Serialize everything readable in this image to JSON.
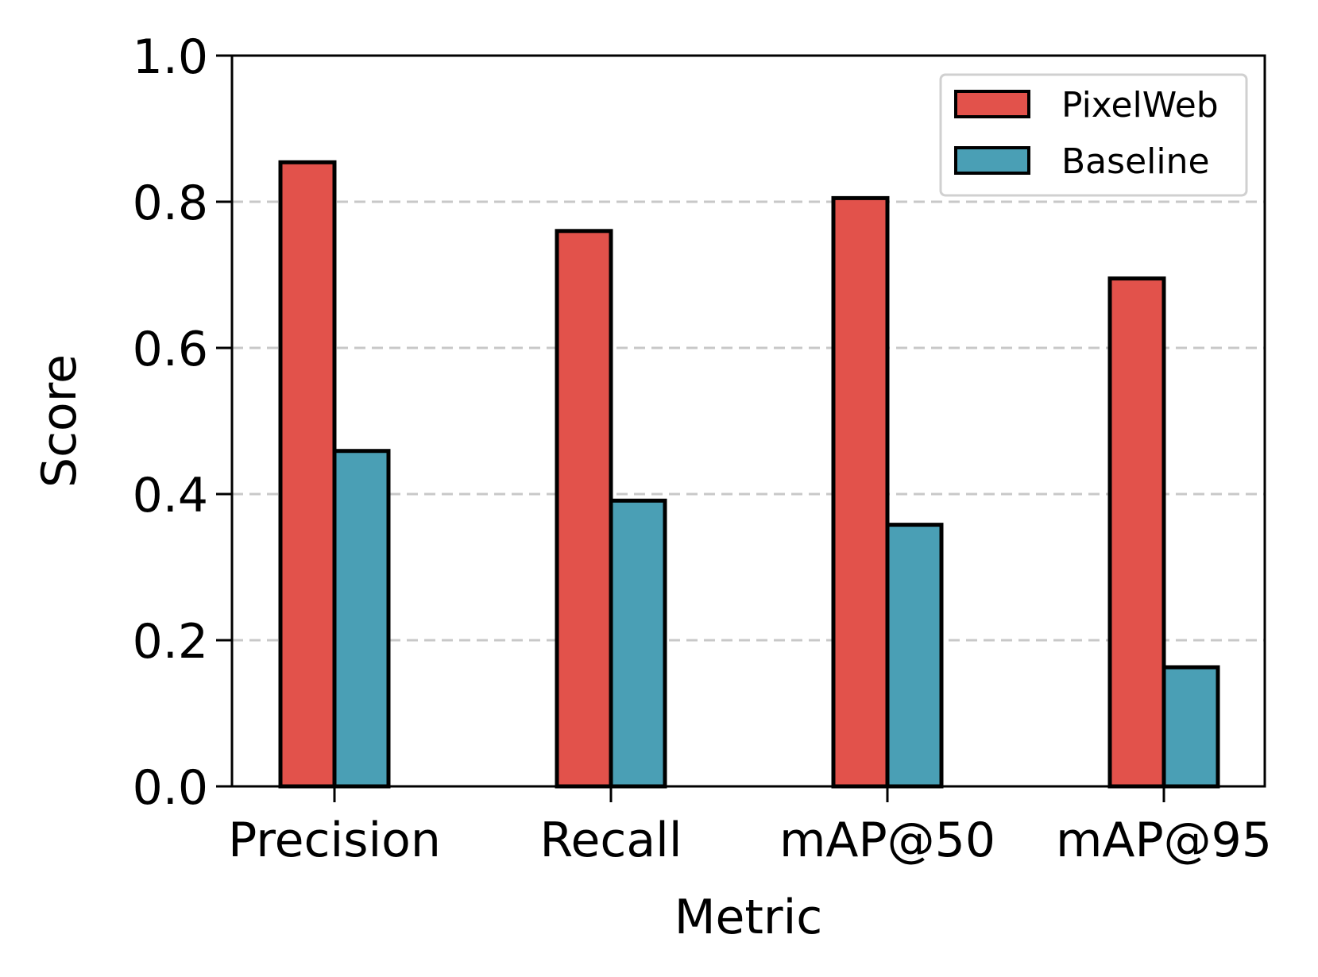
{
  "chart_data": {
    "type": "bar",
    "categories": [
      "Precision",
      "Recall",
      "mAP@50",
      "mAP@95"
    ],
    "series": [
      {
        "name": "PixelWeb",
        "color": "#e2524b",
        "values": [
          0.854,
          0.76,
          0.805,
          0.695
        ]
      },
      {
        "name": "Baseline",
        "color": "#4a9fb5",
        "values": [
          0.459,
          0.391,
          0.358,
          0.163
        ]
      }
    ],
    "title": "",
    "xlabel": "Metric",
    "ylabel": "Score",
    "ylim": [
      0.0,
      1.0
    ],
    "yticks": [
      "0.0",
      "0.2",
      "0.4",
      "0.6",
      "0.8",
      "1.0"
    ],
    "grid": "y-dashed",
    "legend_position": "top-right"
  }
}
